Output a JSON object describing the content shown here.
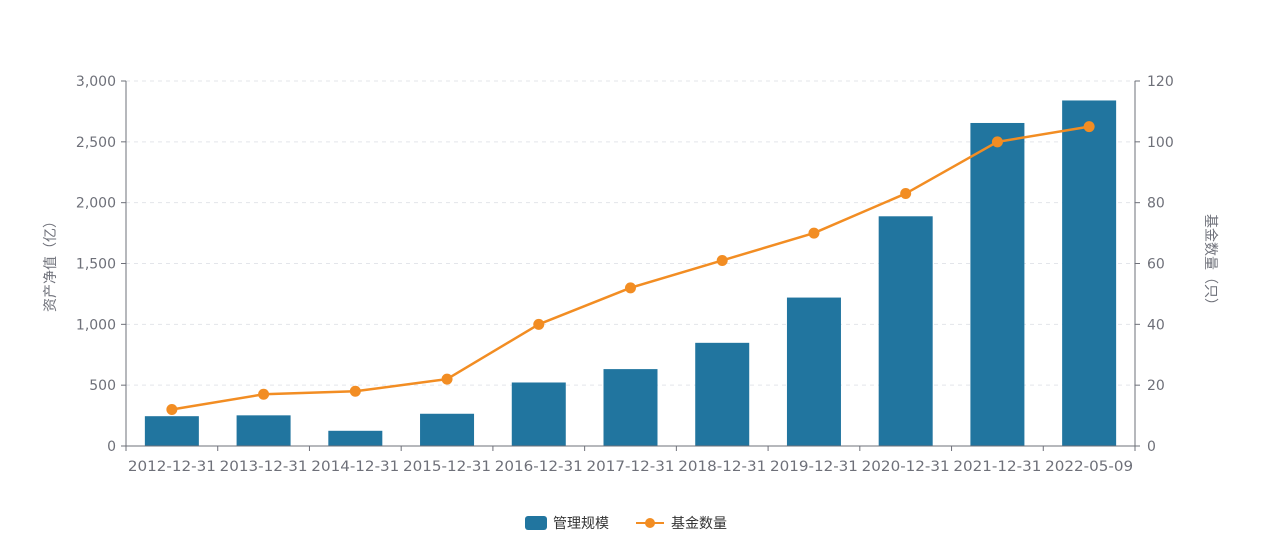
{
  "chart_data": {
    "type": "bar",
    "categories": [
      "2012-12-31",
      "2013-12-31",
      "2014-12-31",
      "2015-12-31",
      "2016-12-31",
      "2017-12-31",
      "2018-12-31",
      "2019-12-31",
      "2020-12-31",
      "2021-12-31",
      "2022-05-09"
    ],
    "series": [
      {
        "name": "管理规模",
        "type": "bar",
        "axis": "left",
        "color": "#21759f",
        "values": [
          245,
          252,
          125,
          265,
          522,
          632,
          848,
          1220,
          1888,
          2655,
          2840
        ]
      },
      {
        "name": "基金数量",
        "type": "line",
        "axis": "right",
        "color": "#f28d23",
        "values": [
          12,
          17,
          18,
          22,
          40,
          52,
          61,
          70,
          83,
          100,
          105
        ]
      }
    ],
    "ylabel": "资产净值（亿）",
    "ylabel_right": "基金数量（只）",
    "ylim": [
      0,
      3000
    ],
    "ylim_right": [
      0,
      120
    ],
    "yticks": [
      "0",
      "500",
      "1,000",
      "1,500",
      "2,000",
      "2,500",
      "3,000"
    ],
    "yticks_right": [
      "0",
      "20",
      "40",
      "60",
      "80",
      "100",
      "120"
    ],
    "grid": true,
    "legend": "bottom-center",
    "legend_items": [
      "管理规模",
      "基金数量"
    ]
  }
}
